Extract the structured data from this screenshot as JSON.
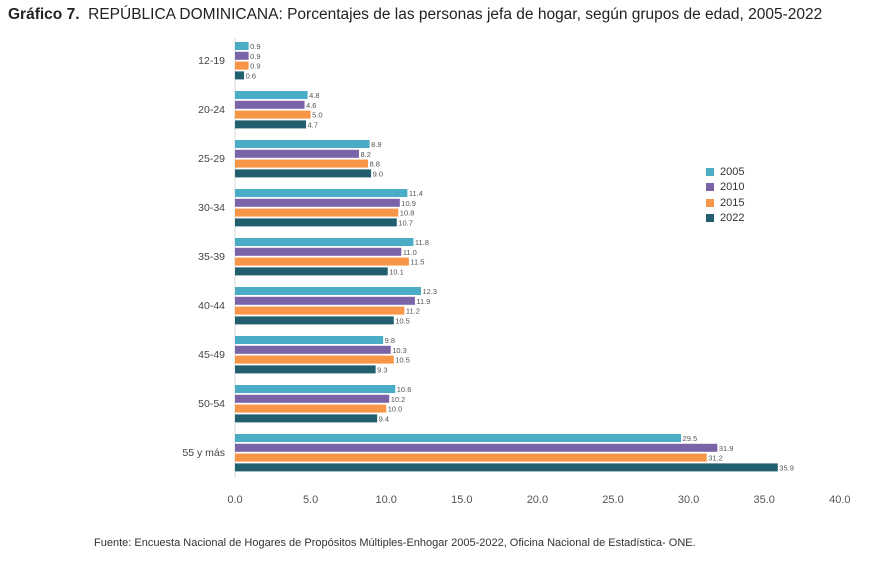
{
  "title": {
    "lead": "Gráfico 7.",
    "text": "REPÚBLICA DOMINICANA: Porcentajes de las personas jefa de hogar, según grupos de edad, 2005-2022"
  },
  "source": "Fuente: Encuesta Nacional de Hogares de Propósitos Múltiples-Enhogar 2005-2022, Oficina Nacional de Estadística- ONE.",
  "chart_data": {
    "type": "bar",
    "orientation": "horizontal",
    "title": "REPÚBLICA DOMINICANA: Porcentajes de las personas jefa de hogar, según grupos de edad, 2005-2022",
    "categories": [
      "12-19",
      "20-24",
      "25-29",
      "30-34",
      "35-39",
      "40-44",
      "45-49",
      "50-54",
      "55 y más"
    ],
    "series": [
      {
        "name": "2005",
        "color": "#4aacc5",
        "values": [
          0.9,
          4.8,
          8.9,
          11.4,
          11.8,
          12.3,
          9.8,
          10.6,
          29.5
        ]
      },
      {
        "name": "2010",
        "color": "#7b63a8",
        "values": [
          0.9,
          4.6,
          8.2,
          10.9,
          11.0,
          11.9,
          10.3,
          10.2,
          31.9
        ]
      },
      {
        "name": "2015",
        "color": "#f79646",
        "values": [
          0.9,
          5.0,
          8.8,
          10.8,
          11.5,
          11.2,
          10.5,
          10.0,
          31.2
        ]
      },
      {
        "name": "2022",
        "color": "#215f6e",
        "values": [
          0.6,
          4.7,
          9.0,
          10.7,
          10.1,
          10.5,
          9.3,
          9.4,
          35.9
        ]
      }
    ],
    "xlim": [
      0,
      40
    ],
    "xticks": [
      "0.0",
      "5.0",
      "10.0",
      "15.0",
      "20.0",
      "25.0",
      "30.0",
      "35.0",
      "40.0"
    ],
    "legend_position": "right",
    "xlabel": "",
    "ylabel": ""
  }
}
